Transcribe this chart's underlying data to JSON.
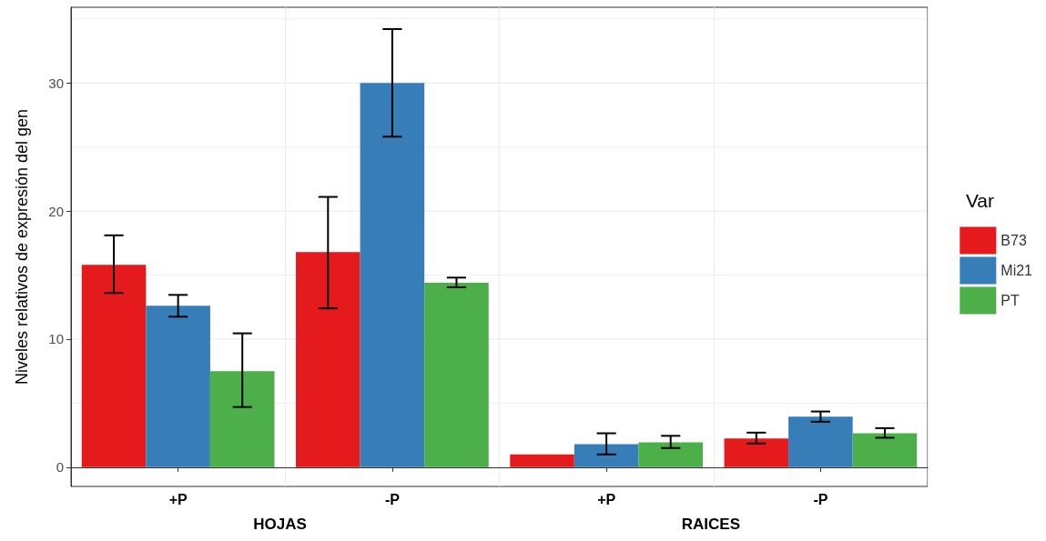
{
  "chart_data": {
    "type": "bar",
    "ylabel": "Niveles relativos de expresión del gen",
    "legend_title": "Var",
    "categories": [
      "+P",
      "-P",
      "+P",
      "-P"
    ],
    "annotations": [
      "HOJAS",
      "RAICES"
    ],
    "series": [
      {
        "name": "B73",
        "color": "#e41a1c",
        "values": [
          15.8,
          16.8,
          1.0,
          2.25
        ],
        "errors": [
          [
            13.6,
            18.1
          ],
          [
            12.4,
            21.1
          ],
          null,
          [
            1.85,
            2.7
          ]
        ]
      },
      {
        "name": "Mi21",
        "color": "#377eb8",
        "values": [
          12.6,
          30.0,
          1.8,
          3.95
        ],
        "errors": [
          [
            11.75,
            13.45
          ],
          [
            25.8,
            34.2
          ],
          [
            1.0,
            2.65
          ],
          [
            3.55,
            4.35
          ]
        ]
      },
      {
        "name": "PT",
        "color": "#4daf4a",
        "values": [
          7.5,
          14.4,
          1.95,
          2.65
        ],
        "errors": [
          [
            4.7,
            10.45
          ],
          [
            14.05,
            14.8
          ],
          [
            1.5,
            2.45
          ],
          [
            2.3,
            3.05
          ]
        ]
      }
    ],
    "ylim": [
      -1.5,
      35.9
    ],
    "yticks": [
      0,
      {
        "value": 5,
        "label": null
      },
      10,
      {
        "value": 15,
        "label": null
      },
      20,
      {
        "value": 25,
        "label": null
      },
      30,
      {
        "value": 35,
        "label": null
      }
    ],
    "grid": true,
    "legend": "right"
  }
}
